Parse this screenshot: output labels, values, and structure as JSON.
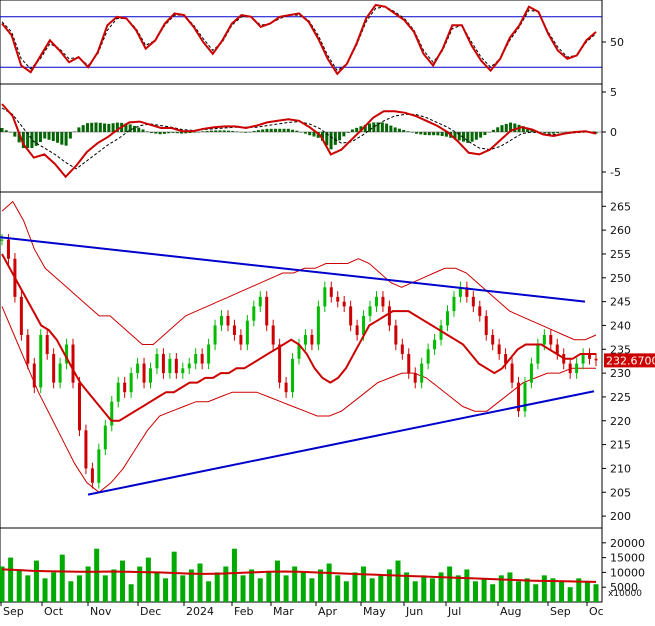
{
  "chart_data": [
    {
      "panel": "stochastic",
      "type": "line",
      "yticks": [
        50
      ],
      "reference_levels": [
        80,
        20
      ],
      "series": [
        {
          "role": "main",
          "color": "#cc0000",
          "values": [
            72,
            58,
            22,
            14,
            33,
            52,
            40,
            26,
            32,
            20,
            38,
            70,
            80,
            78,
            64,
            42,
            52,
            72,
            84,
            82,
            68,
            50,
            36,
            52,
            72,
            82,
            80,
            68,
            72,
            80,
            82,
            84,
            74,
            54,
            30,
            12,
            24,
            48,
            78,
            94,
            92,
            84,
            76,
            62,
            36,
            22,
            42,
            70,
            70,
            46,
            28,
            16,
            30,
            55,
            70,
            92,
            86,
            60,
            40,
            30,
            34,
            52,
            62
          ]
        },
        {
          "role": "signal",
          "color": "#000000",
          "values": [
            74,
            62,
            30,
            18,
            30,
            48,
            42,
            30,
            32,
            22,
            36,
            64,
            78,
            78,
            66,
            46,
            52,
            70,
            82,
            82,
            70,
            54,
            40,
            50,
            70,
            80,
            80,
            70,
            72,
            78,
            82,
            82,
            76,
            58,
            34,
            16,
            24,
            46,
            74,
            90,
            92,
            86,
            78,
            64,
            40,
            26,
            40,
            66,
            70,
            50,
            32,
            20,
            30,
            52,
            68,
            88,
            86,
            62,
            44,
            32,
            34,
            50,
            60
          ]
        }
      ]
    },
    {
      "panel": "macd",
      "type": "line",
      "yticks": [
        5,
        0,
        -5
      ],
      "ylim": [
        -7.5,
        6.0
      ],
      "series": [
        {
          "role": "macd",
          "color": "#cc0000",
          "values": [
            3.5,
            2.0,
            -1.5,
            -3.2,
            -2.8,
            -4.0,
            -5.6,
            -4.2,
            -2.5,
            -1.4,
            -0.6,
            0.4,
            1.2,
            1.3,
            0.9,
            0.5,
            0.5,
            0.1,
            0.1,
            0.4,
            0.6,
            0.7,
            0.7,
            0.5,
            0.8,
            1.2,
            1.4,
            1.6,
            1.4,
            0.6,
            -0.4,
            -2.8,
            -2.2,
            -0.9,
            0.4,
            1.8,
            2.6,
            2.6,
            2.4,
            2.0,
            1.4,
            0.8,
            0.0,
            -1.2,
            -2.6,
            -2.8,
            -2.2,
            -1.0,
            0.2,
            0.6,
            0.3,
            -0.3,
            -0.5,
            -0.2,
            0.0,
            0.1,
            -0.2
          ]
        },
        {
          "role": "signal",
          "color": "#000000",
          "values": [
            3.0,
            2.2,
            0.5,
            -1.2,
            -2.0,
            -2.8,
            -3.8,
            -4.6,
            -3.6,
            -2.6,
            -1.6,
            -0.8,
            0.2,
            0.8,
            1.0,
            0.8,
            0.6,
            0.3,
            0.2,
            0.3,
            0.4,
            0.5,
            0.6,
            0.6,
            0.6,
            0.8,
            1.0,
            1.2,
            1.3,
            1.0,
            0.4,
            -0.6,
            -1.4,
            -1.2,
            -0.4,
            0.6,
            1.4,
            2.0,
            2.2,
            2.2,
            1.8,
            1.2,
            0.6,
            -0.2,
            -1.2,
            -2.0,
            -2.2,
            -1.8,
            -1.0,
            -0.2,
            0.0,
            -0.2,
            -0.3,
            -0.2,
            -0.1,
            0.0,
            0.0
          ]
        }
      ]
    },
    {
      "panel": "price",
      "type": "candlestick",
      "yticks": [
        265,
        260,
        255,
        250,
        245,
        240,
        235,
        230,
        225,
        220,
        215,
        210,
        205,
        200
      ],
      "ylim": [
        197.5,
        268.0
      ],
      "last_price_label": "232.6700",
      "last_price_color": "#cc0000",
      "close": [
        258,
        254,
        246,
        238,
        232,
        227,
        238,
        234,
        228,
        232,
        236,
        228,
        218,
        210,
        207,
        214,
        219,
        224,
        228,
        226,
        230,
        232,
        228,
        231,
        234,
        230,
        233,
        230,
        231,
        232,
        234,
        232,
        236,
        240,
        242,
        240,
        238,
        236,
        241,
        244,
        246,
        240,
        236,
        228,
        226,
        233,
        236,
        238,
        236,
        244,
        248,
        246,
        245,
        244,
        240,
        238,
        242,
        244,
        246,
        244,
        240,
        236,
        234,
        230,
        228,
        232,
        235,
        237,
        240,
        243,
        246,
        248,
        246,
        244,
        242,
        238,
        236,
        234,
        232,
        228,
        222,
        228,
        232,
        236,
        238,
        236,
        234,
        232,
        230,
        232,
        234,
        233,
        232.67
      ],
      "ma20": [
        255,
        252,
        249,
        246,
        243,
        240,
        239,
        237,
        234,
        231,
        228,
        226,
        224,
        222,
        220,
        220,
        221,
        222,
        223,
        224,
        225,
        226,
        226,
        227,
        228,
        228,
        229,
        229,
        230,
        230,
        231,
        231,
        232,
        233,
        234,
        235,
        236,
        237,
        236,
        234,
        231,
        229,
        228,
        229,
        231,
        234,
        237,
        240,
        241,
        242,
        243,
        243,
        243,
        242,
        241,
        240,
        239,
        238,
        237,
        236,
        234,
        232,
        231,
        230,
        231,
        233,
        235,
        236,
        236,
        236,
        235,
        234,
        233,
        233,
        234,
        234,
        234
      ],
      "bollinger_upper": [
        264,
        266,
        262,
        256,
        252,
        250,
        248,
        246,
        244,
        242,
        242,
        240,
        238,
        236,
        236,
        238,
        240,
        242,
        243,
        244,
        245,
        246,
        247,
        248,
        249,
        250,
        251,
        251,
        252,
        252,
        253,
        253,
        253,
        254,
        253,
        251,
        249,
        248,
        249,
        250,
        251,
        252,
        252,
        251,
        249,
        247,
        245,
        243,
        242,
        241,
        240,
        239,
        238,
        237,
        237,
        238
      ],
      "bollinger_lower": [
        244,
        238,
        232,
        226,
        221,
        216,
        211,
        207,
        205,
        207,
        210,
        214,
        218,
        221,
        222,
        223,
        224,
        224,
        225,
        226,
        226,
        226,
        225,
        224,
        223,
        222,
        221,
        221,
        222,
        224,
        226,
        228,
        229,
        230,
        230,
        229,
        227,
        225,
        223,
        222,
        222,
        224,
        226,
        228,
        229,
        230,
        230,
        231,
        231,
        231
      ],
      "trendlines": [
        {
          "from": [
            "Sep-2023",
            258.5
          ],
          "to": [
            "Oct-2024",
            245.0
          ],
          "color": "#0000cc"
        },
        {
          "from": [
            "Nov-2023",
            204.5
          ],
          "to": [
            "Oct-2024",
            226.2
          ],
          "color": "#0000cc"
        }
      ]
    },
    {
      "panel": "volume",
      "type": "bar",
      "yticks": [
        "20000",
        "15000",
        "10000",
        "5000"
      ],
      "unit_label": "x10000",
      "bar_color": "#00aa00",
      "ma_color": "#cc0000",
      "values": [
        12000,
        15000,
        11000,
        9000,
        14000,
        8000,
        10000,
        16000,
        7000,
        9000,
        12000,
        18000,
        9000,
        11000,
        14000,
        6000,
        12000,
        15000,
        10000,
        8000,
        17000,
        9000,
        11000,
        13000,
        7000,
        10000,
        12000,
        18000,
        9000,
        11000,
        8000,
        10000,
        14000,
        9000,
        12000,
        10000,
        8000,
        11000,
        13000,
        9000,
        7000,
        10000,
        12000,
        8000,
        9000,
        11000,
        14000,
        10000,
        7000,
        9000,
        8000,
        10000,
        12000,
        9000,
        11000,
        7000,
        8000,
        6000,
        9000,
        10000,
        7000,
        8000,
        6000,
        9000,
        8000,
        7000,
        5000,
        8000,
        7000,
        6000
      ],
      "ma": [
        11000,
        10800,
        10500,
        10400,
        10300,
        10200,
        10200,
        10300,
        10200,
        10100,
        10000,
        9800,
        9600,
        9500,
        9600,
        9800,
        10000,
        10200,
        10300,
        10200,
        10000,
        9800,
        9600,
        9400,
        9200,
        9000,
        8800,
        8600,
        8400,
        8200,
        8000,
        7800,
        7600,
        7400,
        7200,
        7100,
        7000,
        6900,
        6800
      ]
    }
  ],
  "x_axis_labels": [
    "Sep",
    "Oct",
    "Nov",
    "Dec",
    "2024",
    "Feb",
    "Mar",
    "Apr",
    "May",
    "Jun",
    "Jul",
    "Aug",
    "Sep",
    "Oc"
  ]
}
